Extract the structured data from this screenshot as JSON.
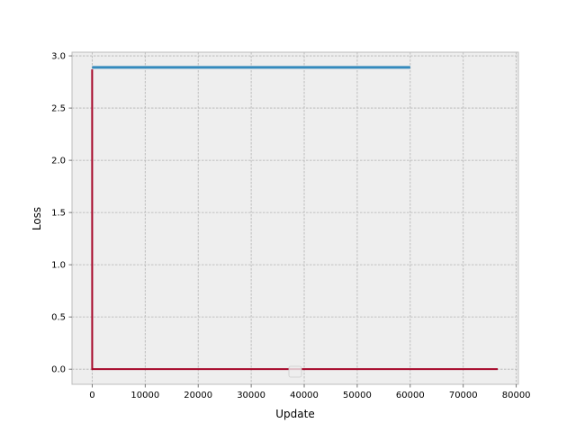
{
  "chart_data": {
    "type": "line",
    "title": "",
    "xlabel": "Update",
    "ylabel": "Loss",
    "xlim": [
      -3800,
      80400
    ],
    "ylim": [
      -0.145,
      3.035
    ],
    "xticks": [
      0,
      10000,
      20000,
      30000,
      40000,
      50000,
      60000,
      70000,
      80000
    ],
    "yticks": [
      0.0,
      0.5,
      1.0,
      1.5,
      2.0,
      2.5,
      3.0
    ],
    "xtick_labels": [
      "0",
      "10000",
      "20000",
      "30000",
      "40000",
      "50000",
      "60000",
      "70000",
      "80000"
    ],
    "ytick_labels": [
      "0.0",
      "0.5",
      "1.0",
      "1.5",
      "2.0",
      "2.5",
      "3.0"
    ],
    "grid": true,
    "legend": {
      "placement": "lower center",
      "entries": []
    },
    "series": [
      {
        "color": "#348ABD",
        "x": [
          0,
          60000
        ],
        "y": [
          2.89,
          2.89
        ]
      },
      {
        "color": "#A60628",
        "x": [
          0,
          10,
          76500
        ],
        "y": [
          2.87,
          0.0,
          0.0
        ]
      }
    ],
    "colors": {
      "plot_background": "#EEEEEE",
      "grid": "#B2B2B2",
      "frame": "#BCBCBC"
    }
  }
}
